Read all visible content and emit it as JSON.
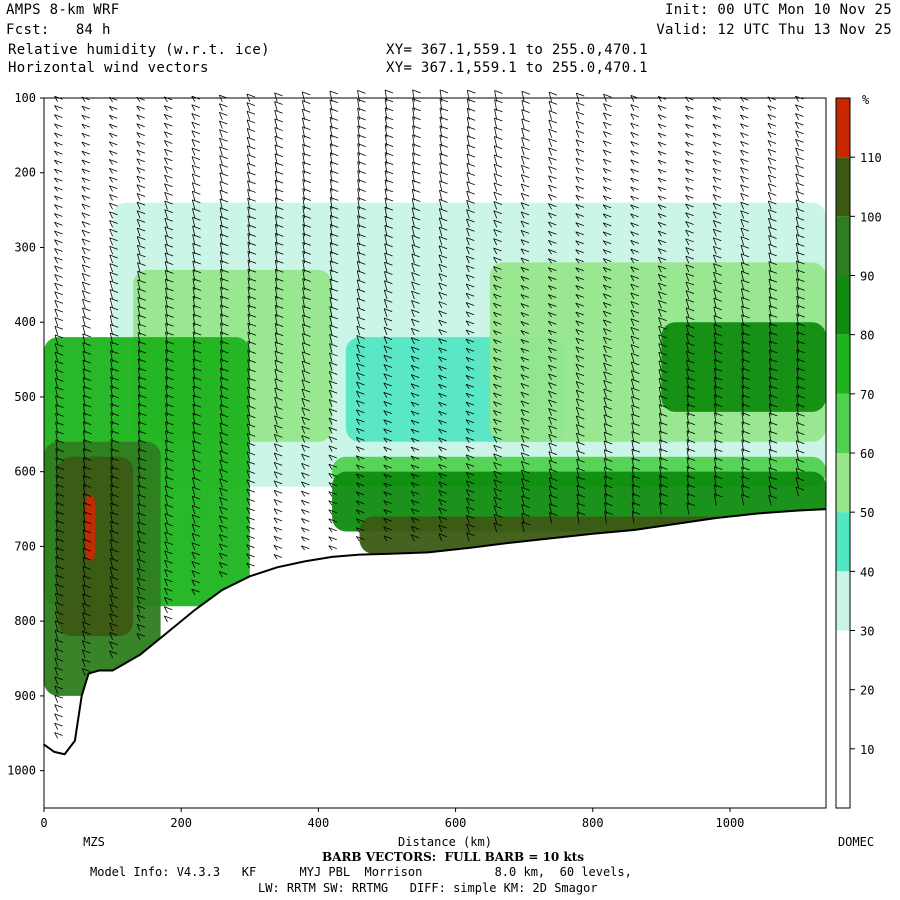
{
  "header": {
    "title": "AMPS 8-km WRF",
    "fcst": "Fcst:   84 h",
    "field1": "Relative humidity (w.r.t. ice)",
    "field2": "Horizontal wind vectors",
    "init": "Init: 00 UTC Mon 10 Nov 25",
    "valid": "Valid: 12 UTC Thu 13 Nov 25",
    "xy1": "XY= 367.1,559.1 to 255.0,470.1",
    "xy2": "XY= 367.1,559.1 to 255.0,470.1"
  },
  "footer": {
    "barb_note": "BARB VECTORS:  FULL BARB = 10 kts",
    "model_info": "Model Info: V4.3.3   KF      MYJ PBL  Morrison          8.0 km,  60 levels,",
    "model_info2": "LW: RRTM SW: RRTMG   DIFF: simple KM: 2D Smagor"
  },
  "chart_data": {
    "type": "heatmap",
    "title": "Relative humidity (w.r.t. ice)",
    "xlabel": "Distance (km)",
    "ylabel": "",
    "xlim": [
      0,
      1140
    ],
    "ylim": [
      1050,
      100
    ],
    "x_ticks": [
      0,
      200,
      400,
      600,
      800,
      1000
    ],
    "y_ticks": [
      100,
      200,
      300,
      400,
      500,
      600,
      700,
      800,
      900,
      1000
    ],
    "x_endpoints": {
      "start": "MZS",
      "end": "DOMEC"
    },
    "colorbar": {
      "unit": "%",
      "levels": [
        10,
        20,
        30,
        40,
        50,
        60,
        70,
        80,
        90,
        100,
        110
      ],
      "colors": [
        "#ffffff",
        "#ffffff",
        "#ffffff",
        "#c8f5e6",
        "#52e6c3",
        "#96e68c",
        "#50d250",
        "#1eb41e",
        "#0f8c0f",
        "#2e7d1e",
        "#3c5a14",
        "#c82800"
      ]
    },
    "terrain_surface_hpa": [
      [
        0,
        965
      ],
      [
        15,
        975
      ],
      [
        30,
        978
      ],
      [
        45,
        960
      ],
      [
        55,
        900
      ],
      [
        65,
        870
      ],
      [
        80,
        866
      ],
      [
        100,
        866
      ],
      [
        140,
        845
      ],
      [
        180,
        815
      ],
      [
        220,
        785
      ],
      [
        260,
        758
      ],
      [
        300,
        740
      ],
      [
        340,
        728
      ],
      [
        380,
        720
      ],
      [
        420,
        714
      ],
      [
        460,
        711
      ],
      [
        500,
        710
      ],
      [
        560,
        708
      ],
      [
        620,
        702
      ],
      [
        680,
        695
      ],
      [
        740,
        689
      ],
      [
        800,
        683
      ],
      [
        860,
        678
      ],
      [
        920,
        670
      ],
      [
        980,
        662
      ],
      [
        1040,
        656
      ],
      [
        1100,
        652
      ],
      [
        1140,
        650
      ]
    ],
    "rh_regions": [
      {
        "level": 110,
        "x": [
          60,
          75
        ],
        "p": [
          630,
          720
        ]
      },
      {
        "level": 100,
        "x": [
          20,
          130
        ],
        "p": [
          580,
          820
        ]
      },
      {
        "level": 100,
        "x": [
          460,
          1140
        ],
        "p": [
          660,
          710
        ]
      },
      {
        "level": 90,
        "x": [
          0,
          170
        ],
        "p": [
          560,
          900
        ]
      },
      {
        "level": 80,
        "x": [
          420,
          1140
        ],
        "p": [
          600,
          680
        ]
      },
      {
        "level": 80,
        "x": [
          900,
          1140
        ],
        "p": [
          400,
          520
        ]
      },
      {
        "level": 70,
        "x": [
          0,
          300
        ],
        "p": [
          420,
          780
        ]
      },
      {
        "level": 60,
        "x": [
          420,
          1140
        ],
        "p": [
          580,
          620
        ]
      },
      {
        "level": 50,
        "x": [
          650,
          1140
        ],
        "p": [
          320,
          560
        ]
      },
      {
        "level": 50,
        "x": [
          130,
          420
        ],
        "p": [
          330,
          560
        ]
      },
      {
        "level": 40,
        "x": [
          440,
          760
        ],
        "p": [
          420,
          560
        ]
      },
      {
        "level": 30,
        "x": [
          100,
          1140
        ],
        "p": [
          240,
          620
        ]
      }
    ],
    "wind_barbs": "vertical columns of barbs from 100 to surface, roughly every 40 km"
  }
}
